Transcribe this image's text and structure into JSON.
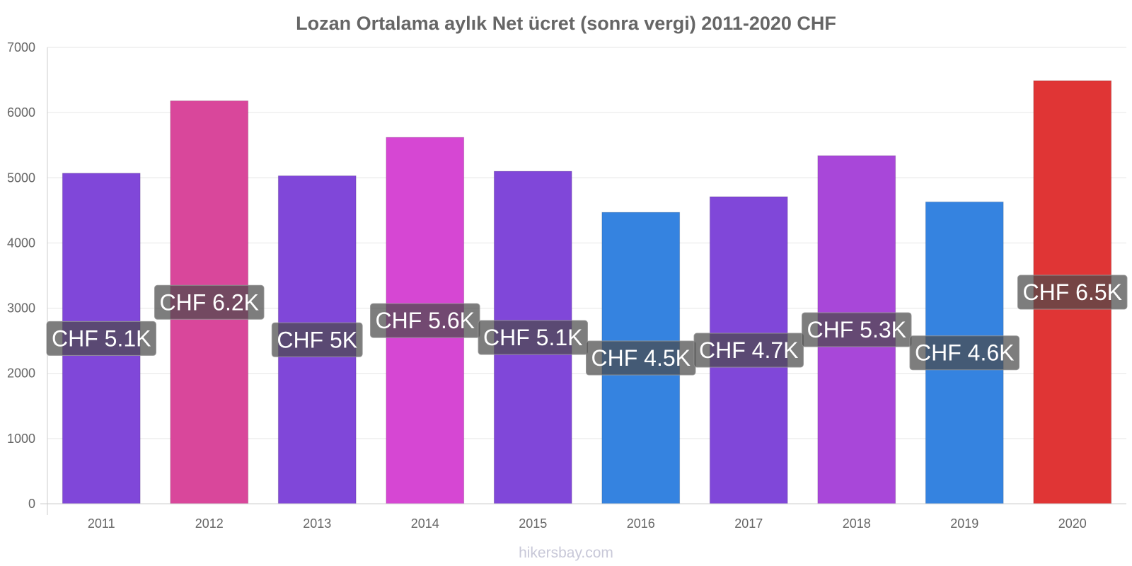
{
  "chart_data": {
    "type": "bar",
    "title": "Lozan Ortalama aylık Net ücret (sonra vergi) 2011-2020 CHF",
    "xlabel": "",
    "ylabel": "",
    "categories": [
      "2011",
      "2012",
      "2013",
      "2014",
      "2015",
      "2016",
      "2017",
      "2018",
      "2019",
      "2020"
    ],
    "values": [
      5070,
      6180,
      5030,
      5620,
      5100,
      4470,
      4710,
      5340,
      4630,
      6490
    ],
    "data_labels": [
      "CHF 5.1K",
      "CHF 6.2K",
      "CHF 5K",
      "CHF 5.6K",
      "CHF 5.1K",
      "CHF 4.5K",
      "CHF 4.7K",
      "CHF 5.3K",
      "CHF 4.6K",
      "CHF 6.5K"
    ],
    "bar_colors": [
      "#8047d9",
      "#d9479b",
      "#8047d9",
      "#d647d3",
      "#8047d9",
      "#3583e0",
      "#8047d9",
      "#a847d9",
      "#3583e0",
      "#e03535"
    ],
    "ylim": [
      0,
      7000
    ],
    "yticks": [
      0,
      1000,
      2000,
      3000,
      4000,
      5000,
      6000,
      7000
    ],
    "grid": true,
    "legend": "none"
  },
  "watermark": "hikersbay.com"
}
